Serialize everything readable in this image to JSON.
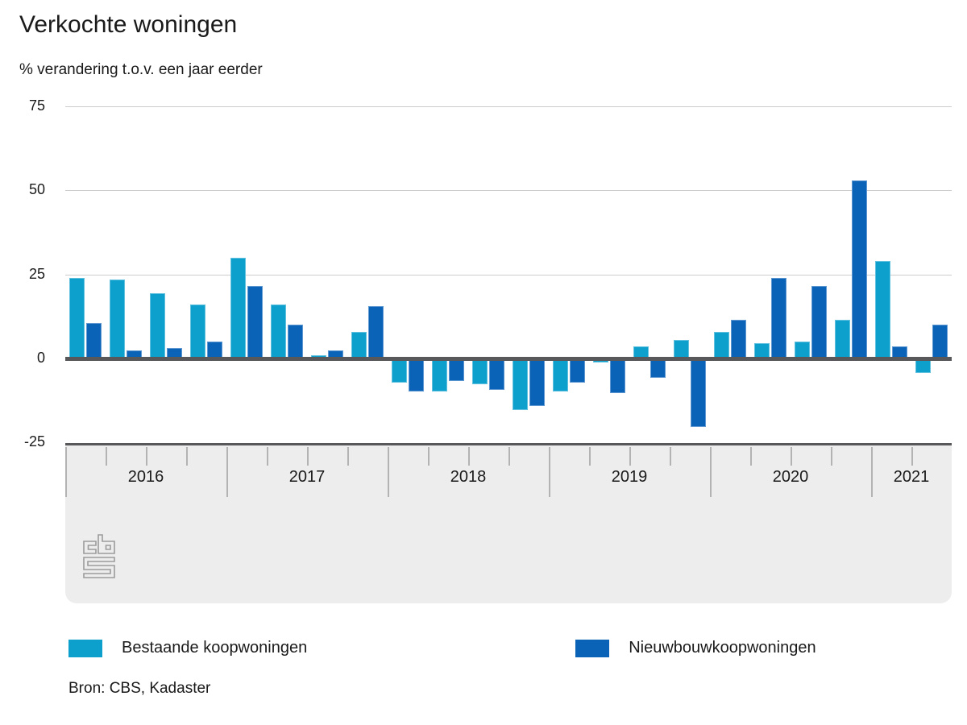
{
  "title": "Verkochte woningen",
  "subtitle": "% verandering t.o.v. een jaar eerder",
  "source": "Bron: CBS, Kadaster",
  "colors": {
    "existing_homes": "#0ea0cd",
    "new_build_homes": "#0b63b8",
    "zero_axis": "#58585a",
    "gridline": "#cccccc",
    "axis_band": "#ededed",
    "tick": "#b3b3b3",
    "logo_gray": "#9b9b9b"
  },
  "legend": [
    {
      "label": "Bestaande koopwoningen",
      "color": "#0ea0cd"
    },
    {
      "label": "Nieuwbouwkoopwoningen",
      "color": "#0b63b8"
    }
  ],
  "chart_data": {
    "type": "bar",
    "title": "Verkochte woningen",
    "ylabel": "% verandering t.o.v. een jaar eerder",
    "ylim": [
      -25,
      75
    ],
    "yticks": [
      75,
      50,
      25,
      0,
      -25
    ],
    "grid": "horizontal",
    "legend_position": "bottom",
    "years": [
      "2016",
      "2017",
      "2018",
      "2019",
      "2020",
      "2021"
    ],
    "categories": [
      "2016-K1",
      "2016-K2",
      "2016-K3",
      "2016-K4",
      "2017-K1",
      "2017-K2",
      "2017-K3",
      "2017-K4",
      "2018-K1",
      "2018-K2",
      "2018-K3",
      "2018-K4",
      "2019-K1",
      "2019-K2",
      "2019-K3",
      "2019-K4",
      "2020-K1",
      "2020-K2",
      "2020-K3",
      "2020-K4",
      "2021-K1",
      "2021-K2"
    ],
    "series": [
      {
        "name": "Bestaande koopwoningen",
        "color": "#0ea0cd",
        "values": [
          24,
          23.5,
          19.5,
          16,
          30,
          16,
          1,
          8,
          -7,
          -9.5,
          -7.5,
          -15,
          -9.5,
          -1,
          3.5,
          5.5,
          8,
          4.5,
          5,
          11.5,
          29,
          -4
        ]
      },
      {
        "name": "Nieuwbouwkoopwoningen",
        "color": "#0b63b8",
        "values": [
          10.5,
          2.5,
          3,
          5,
          21.5,
          10,
          2.5,
          15.5,
          -9.5,
          -6.5,
          -9,
          -14,
          -7,
          -10,
          -5.5,
          -20,
          11.5,
          24,
          21.5,
          53,
          3.5,
          10
        ]
      }
    ]
  }
}
